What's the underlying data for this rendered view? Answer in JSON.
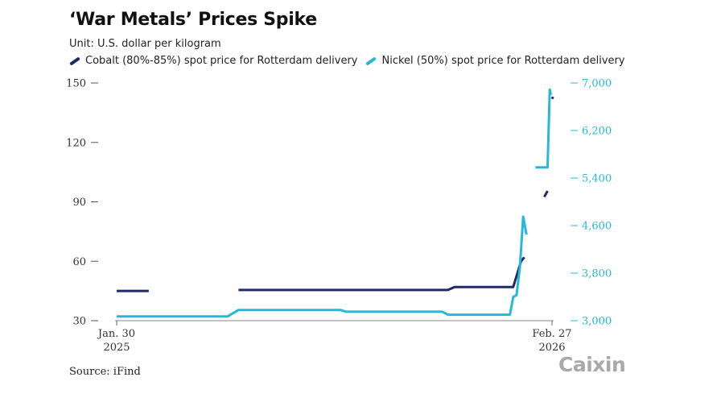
{
  "header": {
    "title": "‘War Metals’ Prices Spike",
    "unit": "Unit: U.S. dollar per kilogram"
  },
  "legend": [
    {
      "label": "Cobalt (80%-85%) spot price for Rotterdam delivery",
      "color": "#1f2a6b"
    },
    {
      "label": "Nickel (50%) spot price for Rotterdam delivery",
      "color": "#28b7d8"
    }
  ],
  "footer": {
    "source": "Source: iFind",
    "logo": "Caixin"
  },
  "chart_data": {
    "type": "line",
    "title": "‘War Metals’ Prices Spike",
    "x_range": [
      "2025-01-30",
      "2026-02-27"
    ],
    "x_tick_labels": [
      {
        "line1": "Jan. 30",
        "line2": "2025"
      },
      {
        "line1": "Feb. 27",
        "line2": "2026"
      }
    ],
    "y_left": {
      "range": [
        30,
        150
      ],
      "ticks": [
        30,
        60,
        90,
        120,
        150
      ],
      "tick_labels": [
        "30",
        "60",
        "90",
        "120",
        "150"
      ]
    },
    "y_right": {
      "range": [
        3000,
        7000
      ],
      "ticks": [
        3000,
        3800,
        4600,
        5400,
        6200,
        7000
      ],
      "tick_labels": [
        "3,000",
        "3,800",
        "4,600",
        "5,400",
        "6,200",
        "7,000"
      ]
    },
    "grid": false,
    "legend_position": "top-left",
    "series": [
      {
        "name": "Cobalt (80%-85%) spot price for Rotterdam delivery",
        "axis": "left",
        "color": "#1f2a6b",
        "segments": [
          [
            [
              "2025-01-30",
              45
            ],
            [
              "2025-02-28",
              45
            ]
          ],
          [
            [
              "2025-05-20",
              45.5
            ],
            [
              "2025-11-25",
              45.5
            ],
            [
              "2025-12-01",
              47
            ],
            [
              "2026-01-23",
              47
            ],
            [
              "2026-01-30",
              60
            ],
            [
              "2026-02-02",
              62
            ]
          ],
          [
            [
              "2026-02-20",
              92.5
            ],
            [
              "2026-02-23",
              95.5
            ]
          ],
          [
            [
              "2026-02-27",
              142
            ],
            [
              "2026-02-28",
              143
            ]
          ]
        ]
      },
      {
        "name": "Nickel (50%) spot price for Rotterdam delivery",
        "axis": "right",
        "color": "#28b7d8",
        "segments": [
          [
            [
              "2025-01-30",
              3070
            ],
            [
              "2025-05-10",
              3070
            ],
            [
              "2025-05-20",
              3180
            ],
            [
              "2025-08-20",
              3180
            ],
            [
              "2025-08-25",
              3150
            ],
            [
              "2025-11-20",
              3150
            ],
            [
              "2025-11-25",
              3100
            ],
            [
              "2026-01-20",
              3100
            ],
            [
              "2026-01-23",
              3400
            ],
            [
              "2026-01-26",
              3430
            ],
            [
              "2026-01-29",
              3900
            ],
            [
              "2026-02-01",
              4750
            ],
            [
              "2026-02-04",
              4450
            ]
          ],
          [
            [
              "2026-02-12",
              5580
            ],
            [
              "2026-02-23",
              5580
            ],
            [
              "2026-02-25",
              6890
            ],
            [
              "2026-02-26",
              6800
            ]
          ]
        ]
      }
    ]
  }
}
